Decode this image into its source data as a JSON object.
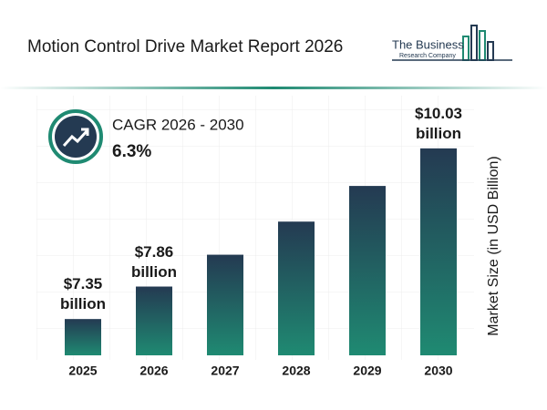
{
  "header": {
    "logo": [
      "The Business",
      "Research Company"
    ]
  },
  "chart_data": {
    "type": "bar",
    "title": "Motion Control Drive Market Report 2026",
    "cagr_label": "CAGR 2026 - 2030",
    "cagr_value": "6.3%",
    "y_label": "Market Size (in USD Billion)",
    "categories": [
      "2025",
      "2026",
      "2027",
      "2028",
      "2029",
      "2030"
    ],
    "values": [
      7.35,
      7.86,
      8.36,
      8.88,
      9.44,
      10.03
    ],
    "value_labels": [
      "$7.35 billion",
      "$7.86 billion",
      null,
      null,
      null,
      "$10.03 billion"
    ],
    "color": [
      "#243a52",
      "#1f8a72"
    ],
    "ylim": [
      6.78,
      10.5
    ]
  }
}
